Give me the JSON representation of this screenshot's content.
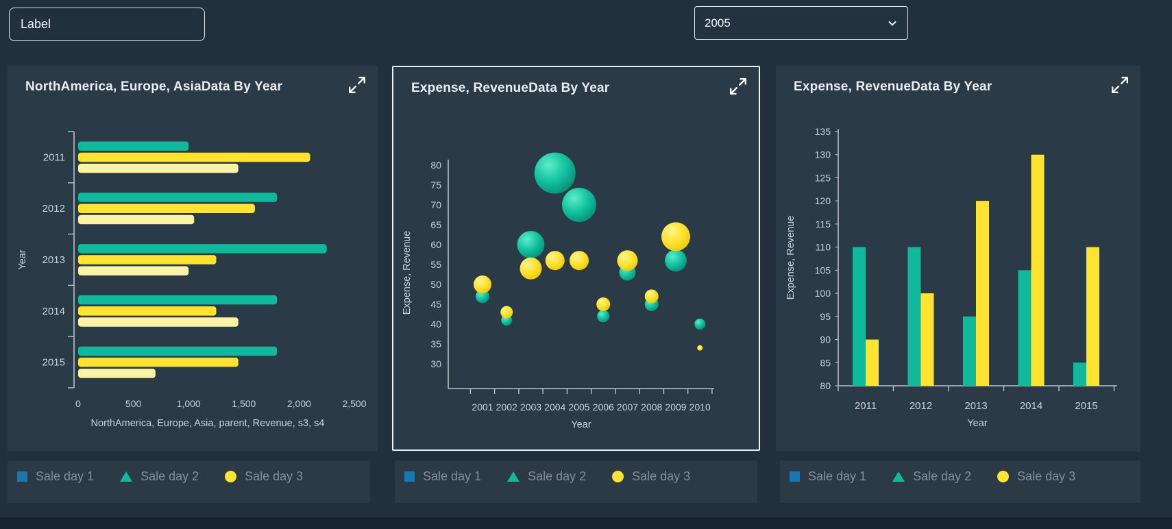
{
  "topbar": {
    "label_value": "Label",
    "year_select": {
      "value": "2005"
    }
  },
  "panels": [
    {
      "title": "NorthAmerica, Europe, AsiaData By Year"
    },
    {
      "title": "Expense, RevenueData By Year"
    },
    {
      "title": "Expense, RevenueData By Year"
    }
  ],
  "legend": {
    "items": [
      {
        "label": "Sale day 1",
        "swatch": "square",
        "color": "#1878b4"
      },
      {
        "label": "Sale day 2",
        "swatch": "triangle",
        "color": "#10b99b"
      },
      {
        "label": "Sale day 3",
        "swatch": "circle",
        "color": "#fde433"
      }
    ]
  },
  "colors": {
    "page_bg": "#22303d",
    "panel_bg": "#2b3a47",
    "teal": "#10b99b",
    "yellow": "#ffe32e",
    "pale_yellow": "#fcf3a5",
    "blue": "#1878b4",
    "tick_text": "#cbd2d8",
    "axis_line": "#b9c2c9",
    "title_text": "#e9edf0"
  },
  "chart_data": [
    {
      "type": "bar",
      "orientation": "horizontal",
      "title": "NorthAmerica, Europe, AsiaData By Year",
      "categories": [
        "2011",
        "2012",
        "2013",
        "2014",
        "2015"
      ],
      "series": [
        {
          "name": "teal",
          "color": "#10b99b",
          "values": [
            1000,
            1800,
            2250,
            1800,
            1800
          ]
        },
        {
          "name": "yellow",
          "color": "#ffe32e",
          "values": [
            2100,
            1600,
            1250,
            1250,
            1450
          ]
        },
        {
          "name": "pale-yellow",
          "color": "#fcf3a5",
          "values": [
            1450,
            1050,
            1000,
            1450,
            700
          ]
        }
      ],
      "xlim": [
        0,
        2500
      ],
      "xticks": [
        0,
        500,
        1000,
        1500,
        2000,
        2500
      ],
      "xlabel": "NorthAmerica, Europe, Asia, parent, Revenue, s3, s4",
      "ylabel": "Year",
      "grid": false,
      "legend_position": "bottom-strip"
    },
    {
      "type": "scatter",
      "subtype": "bubble",
      "title": "Expense, RevenueData By Year",
      "x": [
        2001,
        2002,
        2003,
        2004,
        2005,
        2006,
        2007,
        2008,
        2009,
        2010
      ],
      "series": [
        {
          "name": "teal",
          "color": "#10b99b",
          "values": [
            47,
            41,
            60,
            78,
            70,
            42,
            53,
            45,
            56,
            40
          ],
          "radii": [
            10,
            8,
            20,
            30,
            25,
            9,
            12,
            10,
            16,
            8
          ]
        },
        {
          "name": "yellow",
          "color": "#ffe32e",
          "values": [
            50,
            43,
            54,
            56,
            56,
            45,
            56,
            47,
            62,
            34
          ],
          "radii": [
            13,
            9,
            16,
            14,
            14,
            10,
            15,
            10,
            21,
            4
          ]
        }
      ],
      "ylim": [
        30,
        80
      ],
      "yticks": [
        30,
        35,
        40,
        45,
        50,
        55,
        60,
        65,
        70,
        75,
        80
      ],
      "xlabel": "Year",
      "ylabel": "Expense, Revenue",
      "grid": false,
      "legend_position": "bottom-strip"
    },
    {
      "type": "bar",
      "orientation": "vertical",
      "title": "Expense, RevenueData By Year",
      "categories": [
        "2011",
        "2012",
        "2013",
        "2014",
        "2015"
      ],
      "series": [
        {
          "name": "teal",
          "color": "#10b99b",
          "values": [
            110,
            110,
            95,
            105,
            85
          ]
        },
        {
          "name": "yellow",
          "color": "#ffe32e",
          "values": [
            90,
            100,
            120,
            130,
            110
          ]
        }
      ],
      "ylim": [
        80,
        135
      ],
      "yticks": [
        80,
        85,
        90,
        95,
        100,
        105,
        110,
        115,
        120,
        125,
        130,
        135
      ],
      "xlabel": "Year",
      "ylabel": "Expense, Revenue",
      "grid": false,
      "legend_position": "bottom-strip"
    }
  ]
}
